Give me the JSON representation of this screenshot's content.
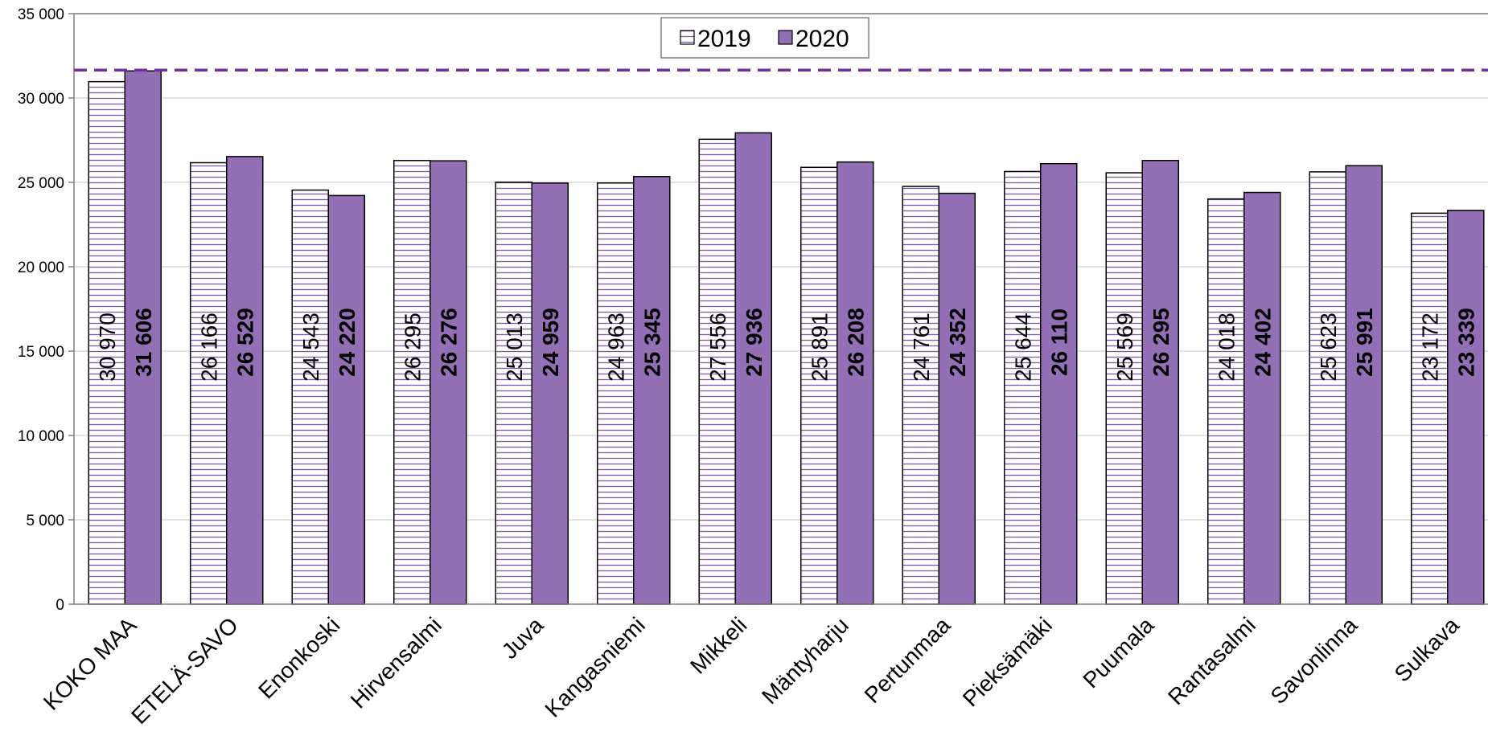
{
  "chart_data": {
    "type": "bar",
    "categories": [
      "KOKO MAA",
      "ETELÄ-SAVO",
      "Enonkoski",
      "Hirvensalmi",
      "Juva",
      "Kangasniemi",
      "Mikkeli",
      "Mäntyharju",
      "Pertunmaa",
      "Pieksämäki",
      "Puumala",
      "Rantasalmi",
      "Savonlinna",
      "Sulkava"
    ],
    "series": [
      {
        "name": "2019",
        "values": [
          30970,
          26166,
          24543,
          26295,
          25013,
          24963,
          27556,
          25891,
          24761,
          25644,
          25569,
          24018,
          25623,
          23172
        ],
        "labels": [
          "30 970",
          "26 166",
          "24 543",
          "26 295",
          "25 013",
          "24 963",
          "27 556",
          "25 891",
          "24 761",
          "25 644",
          "25 569",
          "24 018",
          "25 623",
          "23 172"
        ],
        "fill": "#ffffff",
        "hatch": "#7b5aa6"
      },
      {
        "name": "2020",
        "values": [
          31606,
          26529,
          24220,
          26276,
          24959,
          25345,
          27936,
          26208,
          24352,
          26110,
          26295,
          24402,
          25991,
          23339
        ],
        "labels": [
          "31 606",
          "26 529",
          "24 220",
          "26 276",
          "24 959",
          "25 345",
          "27 936",
          "26 208",
          "24 352",
          "26 110",
          "26 295",
          "24 402",
          "25 991",
          "23 339"
        ],
        "fill": "#9370b5"
      }
    ],
    "reference_line": {
      "value": 31606,
      "style": "dashed",
      "color": "#7030a0"
    },
    "ylim": [
      0,
      35000
    ],
    "yticks": [
      0,
      5000,
      10000,
      15000,
      20000,
      25000,
      30000,
      35000
    ],
    "ytick_labels": [
      "0",
      "5 000",
      "10 000",
      "15 000",
      "20 000",
      "25 000",
      "30 000",
      "35 000"
    ],
    "title": "",
    "xlabel": "",
    "ylabel": "",
    "grid": true,
    "legend_position": "top-center"
  }
}
